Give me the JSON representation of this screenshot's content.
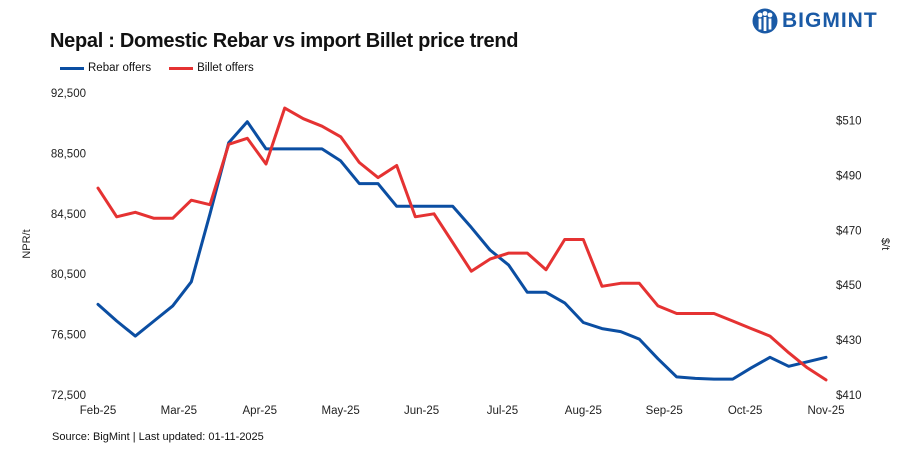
{
  "title": "Nepal : Domestic Rebar vs import Billet price trend",
  "brand": "BIGMINT",
  "source": "Source: BigMint | Last updated: 01-11-2025",
  "chart_data": {
    "type": "line",
    "title": "Nepal : Domestic Rebar vs import Billet price trend",
    "x_labels": [
      "Feb-25",
      "Mar-25",
      "Apr-25",
      "May-25",
      "Jun-25",
      "Jul-25",
      "Aug-25",
      "Sep-25",
      "Oct-25",
      "Nov-25"
    ],
    "left_axis": {
      "label": "NPR/t",
      "min": 72500,
      "max": 92500,
      "ticks": [
        "72,500",
        "76,500",
        "80,500",
        "84,500",
        "88,500",
        "92,500"
      ]
    },
    "right_axis": {
      "label": "$/t",
      "min": 410,
      "max": 520,
      "ticks": [
        "$410",
        "$430",
        "$450",
        "$470",
        "$490",
        "$510"
      ]
    },
    "legend_position": "top-left",
    "grid": false,
    "series": [
      {
        "name": "Rebar offers",
        "color": "#0b4ea2",
        "axis": "left",
        "values": [
          78500,
          77400,
          76400,
          77400,
          78400,
          80000,
          84500,
          89200,
          90600,
          88800,
          88800,
          88800,
          88800,
          88000,
          86500,
          86500,
          85000,
          85000,
          85000,
          85000,
          83600,
          82100,
          81100,
          79300,
          79300,
          78600,
          77300,
          76900,
          76700,
          76200,
          74900,
          73700,
          73600,
          73550,
          73550,
          74300,
          75000,
          74400,
          74700,
          75000
        ]
      },
      {
        "name": "Billet offers",
        "color": "#e53232",
        "axis": "left",
        "values": [
          86200,
          84300,
          84600,
          84200,
          84200,
          85400,
          85100,
          89100,
          89500,
          87800,
          91500,
          90800,
          90300,
          89600,
          87900,
          86900,
          87700,
          84300,
          84500,
          82600,
          80700,
          81500,
          81900,
          81900,
          80800,
          82800,
          82800,
          79700,
          79900,
          79900,
          78400,
          77900,
          77900,
          77900,
          77400,
          76900,
          76400,
          75300,
          74300,
          73500
        ]
      }
    ]
  }
}
